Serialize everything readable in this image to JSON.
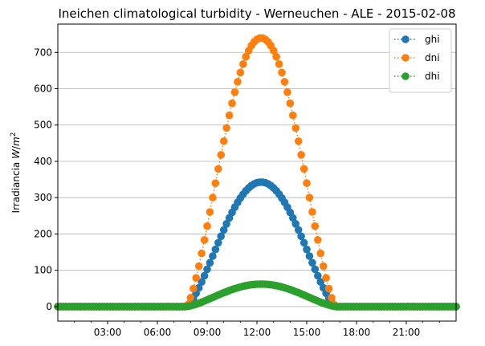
{
  "chart_data": {
    "type": "line",
    "title": "Ineichen climatological turbidity - Werneuchen - ALE - 2015-02-08",
    "xlabel": "",
    "ylabel": "Irradiancia W/m²",
    "ylabel_parts": {
      "prefix": "Irradiancia ",
      "unit_w": "W",
      "unit_slash": "/",
      "unit_m": "m",
      "unit_exp": "2"
    },
    "x_unit": "hour of day",
    "xlim": [
      0,
      24
    ],
    "ylim": [
      -40,
      778
    ],
    "x_ticks": [
      {
        "value": 3,
        "label": "03:00"
      },
      {
        "value": 6,
        "label": "06:00"
      },
      {
        "value": 9,
        "label": "09:00"
      },
      {
        "value": 12,
        "label": "12:00"
      },
      {
        "value": 15,
        "label": "15:00"
      },
      {
        "value": 18,
        "label": "18:00"
      },
      {
        "value": 21,
        "label": "21:00"
      }
    ],
    "y_ticks": [
      0,
      100,
      200,
      300,
      400,
      500,
      600,
      700
    ],
    "grid": "horizontal",
    "legend_position": "top-right",
    "marker": "circle",
    "line_style": "dotted",
    "sampling_minutes": 10,
    "series": [
      {
        "name": "ghi",
        "color": "#1f77b4",
        "sunrise": 7.75,
        "sunset": 16.75,
        "peak_time": 12.25,
        "peak": 343
      },
      {
        "name": "dni",
        "color": "#ff7f0e",
        "sunrise": 7.75,
        "sunset": 16.75,
        "peak_time": 12.25,
        "peak": 740
      },
      {
        "name": "dhi",
        "color": "#2ca02c",
        "sunrise": 7.75,
        "sunset": 16.75,
        "peak_time": 12.25,
        "peak": 62
      }
    ]
  }
}
